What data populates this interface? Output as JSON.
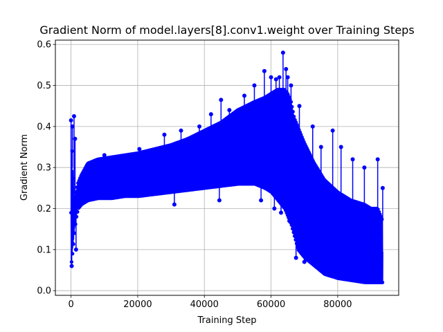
{
  "chart_data": {
    "type": "line",
    "title": "Gradient Norm of model.layers[8].conv1.weight over Training Steps",
    "xlabel": "Training Step",
    "ylabel": "Gradient Norm",
    "xlim": [
      -4700,
      98300
    ],
    "ylim": [
      -0.0115,
      0.6105
    ],
    "xticks": [
      0,
      20000,
      40000,
      60000,
      80000
    ],
    "xtick_labels": [
      "0",
      "20000",
      "40000",
      "60000",
      "80000"
    ],
    "yticks": [
      0.0,
      0.1,
      0.2,
      0.3,
      0.4,
      0.5,
      0.6
    ],
    "ytick_labels": [
      "0.0",
      "0.1",
      "0.2",
      "0.3",
      "0.4",
      "0.5",
      "0.6"
    ],
    "grid": true,
    "series": [
      {
        "color": "#0000ff",
        "marker": "circle",
        "envelope": {
          "x": [
            0,
            200,
            400,
            700,
            1000,
            1500,
            2000,
            3000,
            5000,
            8000,
            12000,
            16000,
            20000,
            25000,
            30000,
            35000,
            40000,
            45000,
            50000,
            55000,
            58000,
            60000,
            62000,
            64000,
            65000,
            66000,
            67000,
            68000,
            70000,
            73000,
            76000,
            80000,
            84000,
            88000,
            90000,
            92000,
            93500
          ],
          "upper": [
            0.19,
            0.38,
            0.3,
            0.26,
            0.21,
            0.24,
            0.26,
            0.28,
            0.31,
            0.32,
            0.325,
            0.33,
            0.335,
            0.345,
            0.355,
            0.37,
            0.39,
            0.41,
            0.44,
            0.46,
            0.47,
            0.48,
            0.49,
            0.49,
            0.48,
            0.46,
            0.42,
            0.4,
            0.36,
            0.31,
            0.27,
            0.24,
            0.22,
            0.21,
            0.2,
            0.2,
            0.17
          ],
          "lower": [
            0.07,
            0.08,
            0.1,
            0.12,
            0.15,
            0.18,
            0.2,
            0.21,
            0.22,
            0.225,
            0.225,
            0.23,
            0.23,
            0.235,
            0.24,
            0.245,
            0.25,
            0.255,
            0.26,
            0.26,
            0.25,
            0.24,
            0.22,
            0.2,
            0.18,
            0.16,
            0.13,
            0.1,
            0.08,
            0.06,
            0.04,
            0.03,
            0.025,
            0.02,
            0.02,
            0.02,
            0.02
          ]
        },
        "peaks": [
          {
            "x": 0,
            "y": 0.415
          },
          {
            "x": 400,
            "y": 0.4
          },
          {
            "x": 900,
            "y": 0.425
          },
          {
            "x": 1200,
            "y": 0.37
          },
          {
            "x": 10000,
            "y": 0.33
          },
          {
            "x": 20500,
            "y": 0.345
          },
          {
            "x": 28000,
            "y": 0.38
          },
          {
            "x": 33000,
            "y": 0.39
          },
          {
            "x": 38500,
            "y": 0.4
          },
          {
            "x": 42000,
            "y": 0.43
          },
          {
            "x": 45000,
            "y": 0.465
          },
          {
            "x": 47500,
            "y": 0.44
          },
          {
            "x": 52000,
            "y": 0.475
          },
          {
            "x": 55000,
            "y": 0.5
          },
          {
            "x": 58000,
            "y": 0.535
          },
          {
            "x": 60000,
            "y": 0.52
          },
          {
            "x": 61500,
            "y": 0.515
          },
          {
            "x": 62500,
            "y": 0.52
          },
          {
            "x": 63600,
            "y": 0.58
          },
          {
            "x": 64500,
            "y": 0.54
          },
          {
            "x": 65000,
            "y": 0.52
          },
          {
            "x": 66000,
            "y": 0.5
          },
          {
            "x": 68500,
            "y": 0.45
          },
          {
            "x": 72500,
            "y": 0.4
          },
          {
            "x": 75000,
            "y": 0.35
          },
          {
            "x": 78500,
            "y": 0.39
          },
          {
            "x": 81000,
            "y": 0.35
          },
          {
            "x": 84500,
            "y": 0.32
          },
          {
            "x": 88000,
            "y": 0.3
          },
          {
            "x": 92000,
            "y": 0.32
          },
          {
            "x": 93500,
            "y": 0.25
          }
        ],
        "dips": [
          {
            "x": 200,
            "y": 0.06
          },
          {
            "x": 1500,
            "y": 0.1
          },
          {
            "x": 31000,
            "y": 0.21
          },
          {
            "x": 44500,
            "y": 0.22
          },
          {
            "x": 57000,
            "y": 0.22
          },
          {
            "x": 61000,
            "y": 0.2
          },
          {
            "x": 63000,
            "y": 0.19
          },
          {
            "x": 65500,
            "y": 0.17
          },
          {
            "x": 67500,
            "y": 0.08
          },
          {
            "x": 70000,
            "y": 0.07
          }
        ]
      }
    ]
  }
}
